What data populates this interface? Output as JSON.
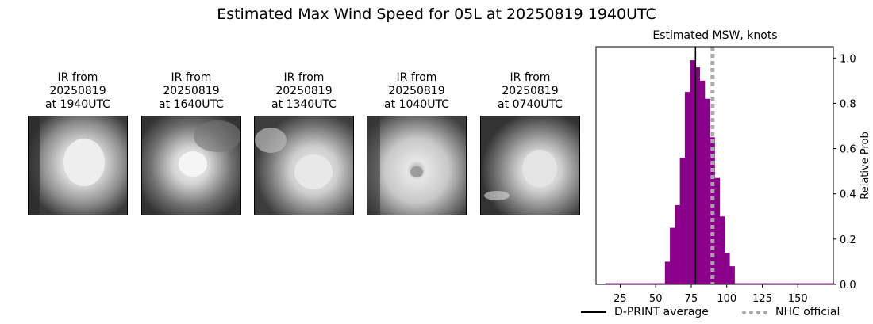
{
  "suptitle": "Estimated Max Wind Speed for 05L at 20250819 1940UTC",
  "ir_panels": [
    {
      "line1": "IR from",
      "line2": "20250819",
      "line3": "at 1940UTC"
    },
    {
      "line1": "IR from",
      "line2": "20250819",
      "line3": "at 1640UTC"
    },
    {
      "line1": "IR from",
      "line2": "20250819",
      "line3": "at 1340UTC"
    },
    {
      "line1": "IR from",
      "line2": "20250819",
      "line3": "at 1040UTC"
    },
    {
      "line1": "IR from",
      "line2": "20250819",
      "line3": "at 0740UTC"
    }
  ],
  "chart_data": {
    "type": "bar",
    "title": "Estimated MSW, knots",
    "xlabel": "",
    "ylabel": "Relative Prob",
    "xlim": [
      8,
      175
    ],
    "ylim": [
      0,
      1.05
    ],
    "x_ticks": [
      25,
      50,
      75,
      100,
      125,
      150
    ],
    "y_ticks": [
      0.0,
      0.2,
      0.4,
      0.6,
      0.8,
      1.0
    ],
    "y_tick_labels": [
      "0.0",
      "0.2",
      "0.4",
      "0.6",
      "0.8",
      "1.0"
    ],
    "y_axis_side": "right",
    "bar_color": "#8b008b",
    "bin_width": 3.5,
    "bin_start": 14.5,
    "values": [
      0.005,
      0.005,
      0.005,
      0.005,
      0.005,
      0.005,
      0.005,
      0.005,
      0.005,
      0.005,
      0.005,
      0.005,
      0.1,
      0.25,
      0.35,
      0.56,
      0.85,
      0.99,
      0.96,
      0.9,
      0.82,
      0.65,
      0.47,
      0.3,
      0.14,
      0.08,
      0.005,
      0.005,
      0.005,
      0.005,
      0.005,
      0.005,
      0.005,
      0.005,
      0.005,
      0.005,
      0.005,
      0.005,
      0.005,
      0.005,
      0.005,
      0.005,
      0.005,
      0.005,
      0.005,
      0.005
    ],
    "lines": [
      {
        "name": "D-PRINT average",
        "x": 78,
        "color": "#000000",
        "style": "solid"
      },
      {
        "name": "NHC official",
        "x": 90,
        "color": "#a9a9a9",
        "style": "dotted"
      }
    ],
    "legend": "bottom"
  }
}
